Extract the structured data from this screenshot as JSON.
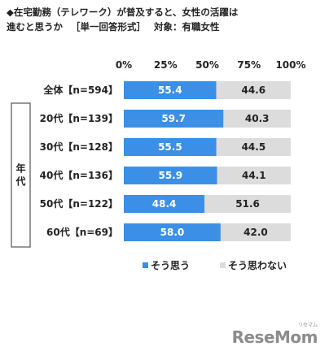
{
  "title": {
    "line1": "◆在宅勤務（テレワーク）が普及すると、女性の活躍は",
    "line2a": "進むと思うか",
    "line2b": "［単一回答形式］",
    "line2c": "対象：有職女性"
  },
  "chart_data": {
    "type": "bar",
    "orientation": "horizontal",
    "stacked": true,
    "percent": true,
    "categories": [
      "全体【n=594】",
      "20代【n=139】",
      "30代【n=128】",
      "40代【n=136】",
      "50代【n=122】",
      "60代【n=69】"
    ],
    "group_label": "年代",
    "series": [
      {
        "name": "そう思う",
        "values": [
          55.4,
          59.7,
          55.5,
          55.9,
          48.4,
          58.0
        ],
        "color": "#3b8fe6",
        "label_color": "#ffffff"
      },
      {
        "name": "そう思わない",
        "values": [
          44.6,
          40.3,
          44.5,
          44.1,
          51.6,
          42.0
        ],
        "color": "#dcdcdc",
        "label_color": "#222222"
      }
    ],
    "value_labels": [
      [
        "55.4",
        "59.7",
        "55.5",
        "55.9",
        "48.4",
        "58.0"
      ],
      [
        "44.6",
        "40.3",
        "44.5",
        "44.1",
        "51.6",
        "42.0"
      ]
    ],
    "x_ticks": [
      "0%",
      "25%",
      "50%",
      "75%",
      "100%"
    ],
    "xlim": [
      0,
      100
    ],
    "legend_position": "bottom"
  },
  "watermark": {
    "text": "ReseMom",
    "sub": "リセマム"
  }
}
